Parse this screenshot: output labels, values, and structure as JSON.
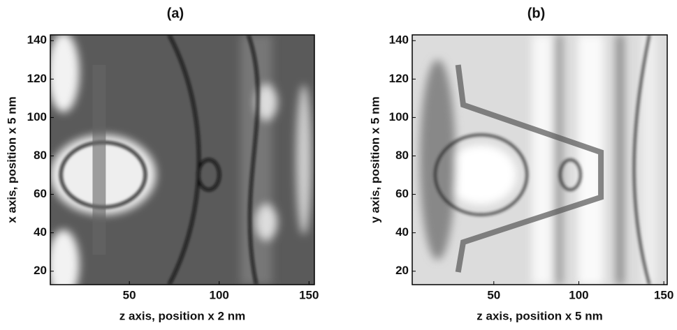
{
  "chart_data": [
    {
      "type": "image",
      "title": "(a)",
      "xlabel": "z axis, position x 2 nm",
      "ylabel": "x axis, position x 5 nm",
      "xlim": [
        6,
        153
      ],
      "ylim": [
        13,
        143
      ],
      "xticks": [
        50,
        100,
        150
      ],
      "yticks": [
        20,
        40,
        60,
        80,
        100,
        120,
        140
      ]
    },
    {
      "type": "image",
      "title": "(b)",
      "xlabel": "z axis, position x 5 nm",
      "ylabel": "y axis, position x 5 nm",
      "xlim": [
        2,
        152
      ],
      "ylim": [
        13,
        143
      ],
      "xticks": [
        50,
        100,
        150
      ],
      "yticks": [
        20,
        40,
        60,
        80,
        100,
        120,
        140
      ]
    }
  ]
}
